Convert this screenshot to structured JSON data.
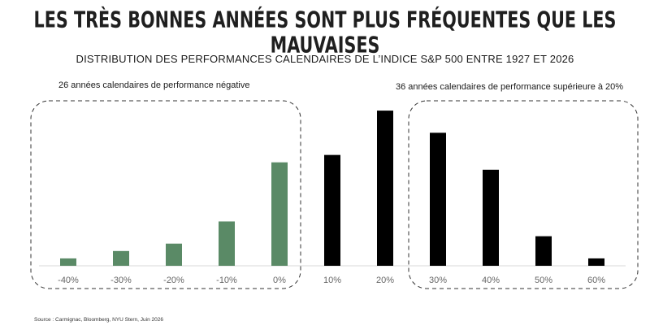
{
  "title": "LES TRÈS BONNES ANNÉES SONT PLUS FRÉQUENTES QUE LES MAUVAISES",
  "subtitle": "DISTRIBUTION DES PERFORMANCES CALENDAIRES DE L’INDICE S&P 500 ENTRE 1927 ET 2026",
  "annotations": {
    "negative": "26 années calendaires de performance négative",
    "above20": "36 années calendaires de performance supérieure à 20%"
  },
  "source": "Source : Carmignac, Bloomberg, NYU Stern, Juin 2026",
  "colors": {
    "negative": "#5a8a66",
    "positive": "#000000",
    "axis": "#d9d9d9",
    "tick_label": "#666666",
    "frame": "#333333"
  },
  "chart_data": {
    "type": "bar",
    "title": "DISTRIBUTION DES PERFORMANCES CALENDAIRES DE L’INDICE S&P 500 ENTRE 1927 ET 2026",
    "xlabel": "",
    "ylabel": "",
    "categories": [
      "-40%",
      "-30%",
      "-20%",
      "-10%",
      "0%",
      "10%",
      "20%",
      "30%",
      "40%",
      "50%",
      "60%"
    ],
    "values": [
      1,
      2,
      3,
      6,
      14,
      15,
      21,
      18,
      13,
      4,
      1
    ],
    "ylim": [
      0,
      22
    ],
    "grid": false,
    "legend": "none",
    "highlight_negative_count": 5
  }
}
